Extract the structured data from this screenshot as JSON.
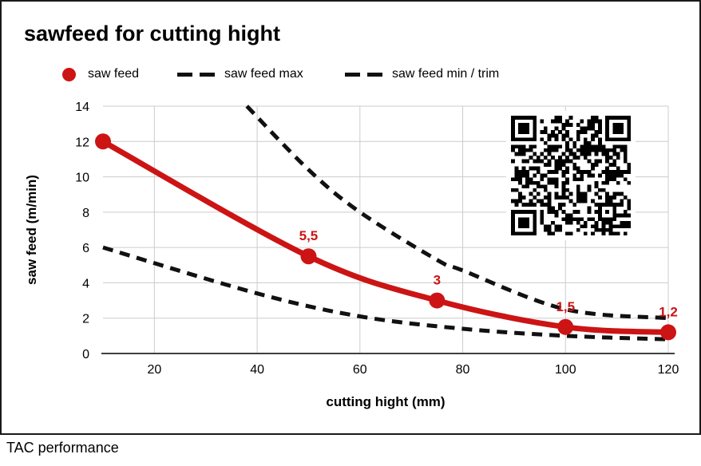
{
  "window": {
    "footer": "TAC performance"
  },
  "chart": {
    "title": "sawfeed for cutting hight",
    "x_axis": {
      "title": "cutting hight (mm)",
      "ticks": [
        20,
        40,
        60,
        80,
        100,
        120
      ]
    },
    "y_axis": {
      "title": "saw feed (m/min)",
      "ticks": [
        0,
        2,
        4,
        6,
        8,
        10,
        12,
        14
      ]
    },
    "legend": [
      {
        "label": "saw feed",
        "marker": "dot",
        "color": "#cc1414"
      },
      {
        "label": "saw feed max",
        "marker": "dash",
        "color": "#111111"
      },
      {
        "label": "saw feed min / trim",
        "marker": "dash",
        "color": "#111111"
      }
    ],
    "qr_icon": "qr-code"
  },
  "chart_data": {
    "type": "line",
    "title": "sawfeed for cutting hight",
    "xlabel": "cutting hight (mm)",
    "ylabel": "saw feed (m/min)",
    "xlim": [
      10,
      120
    ],
    "ylim": [
      0,
      14
    ],
    "grid": true,
    "legend_position": "top",
    "series": [
      {
        "name": "saw feed",
        "style": "solid",
        "color": "#cc1414",
        "points": [
          [
            10,
            12
          ],
          [
            50,
            5.5
          ],
          [
            75,
            3
          ],
          [
            100,
            1.5
          ],
          [
            120,
            1.2
          ]
        ],
        "labels": [
          "",
          "5,5",
          "3",
          "1,5",
          "1,2"
        ]
      },
      {
        "name": "saw feed max",
        "style": "dashed",
        "color": "#111111",
        "points": [
          [
            38,
            14
          ],
          [
            50,
            10.4
          ],
          [
            60,
            8
          ],
          [
            75,
            5.3
          ],
          [
            80,
            4.7
          ],
          [
            100,
            2.5
          ],
          [
            120,
            2
          ]
        ]
      },
      {
        "name": "saw feed min / trim",
        "style": "dashed",
        "color": "#111111",
        "points": [
          [
            10,
            6
          ],
          [
            40,
            3.4
          ],
          [
            60,
            2.1
          ],
          [
            80,
            1.4
          ],
          [
            100,
            1.0
          ],
          [
            120,
            0.8
          ]
        ]
      }
    ]
  }
}
